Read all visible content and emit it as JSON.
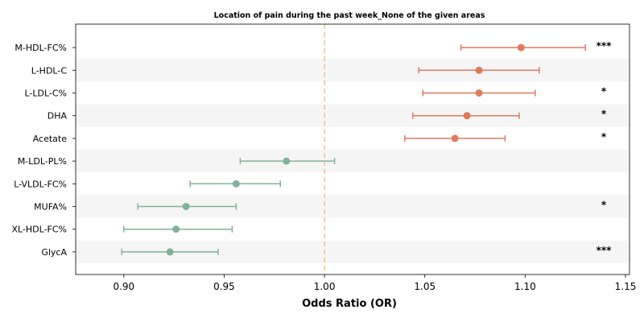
{
  "chart_data": {
    "type": "forest",
    "title": "Location of pain during the past week_None of the given areas",
    "xlabel": "Odds Ratio (OR)",
    "xlim": [
      0.876,
      1.152
    ],
    "xticks": [
      "0.90",
      "0.95",
      "1.00",
      "1.05",
      "1.10",
      "1.15"
    ],
    "xtick_values": [
      0.9,
      0.95,
      1.0,
      1.05,
      1.1,
      1.15
    ],
    "reference_line": 1.0,
    "colors": {
      "risk": "#e07a5f",
      "protective": "#81b29a",
      "reference": "#f4c27f",
      "band": "#f5f5f5",
      "axis": "#000000"
    },
    "rows": [
      {
        "label": "M-HDL-FC%",
        "or": 1.098,
        "lo": 1.068,
        "hi": 1.13,
        "sig": "***"
      },
      {
        "label": "L-HDL-C",
        "or": 1.077,
        "lo": 1.047,
        "hi": 1.107,
        "sig": ""
      },
      {
        "label": "L-LDL-C%",
        "or": 1.077,
        "lo": 1.049,
        "hi": 1.105,
        "sig": "*"
      },
      {
        "label": "DHA",
        "or": 1.071,
        "lo": 1.044,
        "hi": 1.097,
        "sig": "*"
      },
      {
        "label": "Acetate",
        "or": 1.065,
        "lo": 1.04,
        "hi": 1.09,
        "sig": "*"
      },
      {
        "label": "M-LDL-PL%",
        "or": 0.981,
        "lo": 0.958,
        "hi": 1.005,
        "sig": ""
      },
      {
        "label": "L-VLDL-FC%",
        "or": 0.956,
        "lo": 0.933,
        "hi": 0.978,
        "sig": ""
      },
      {
        "label": "MUFA%",
        "or": 0.931,
        "lo": 0.907,
        "hi": 0.956,
        "sig": "*"
      },
      {
        "label": "XL-HDL-FC%",
        "or": 0.926,
        "lo": 0.9,
        "hi": 0.954,
        "sig": ""
      },
      {
        "label": "GlycA",
        "or": 0.923,
        "lo": 0.899,
        "hi": 0.947,
        "sig": "***"
      }
    ]
  }
}
